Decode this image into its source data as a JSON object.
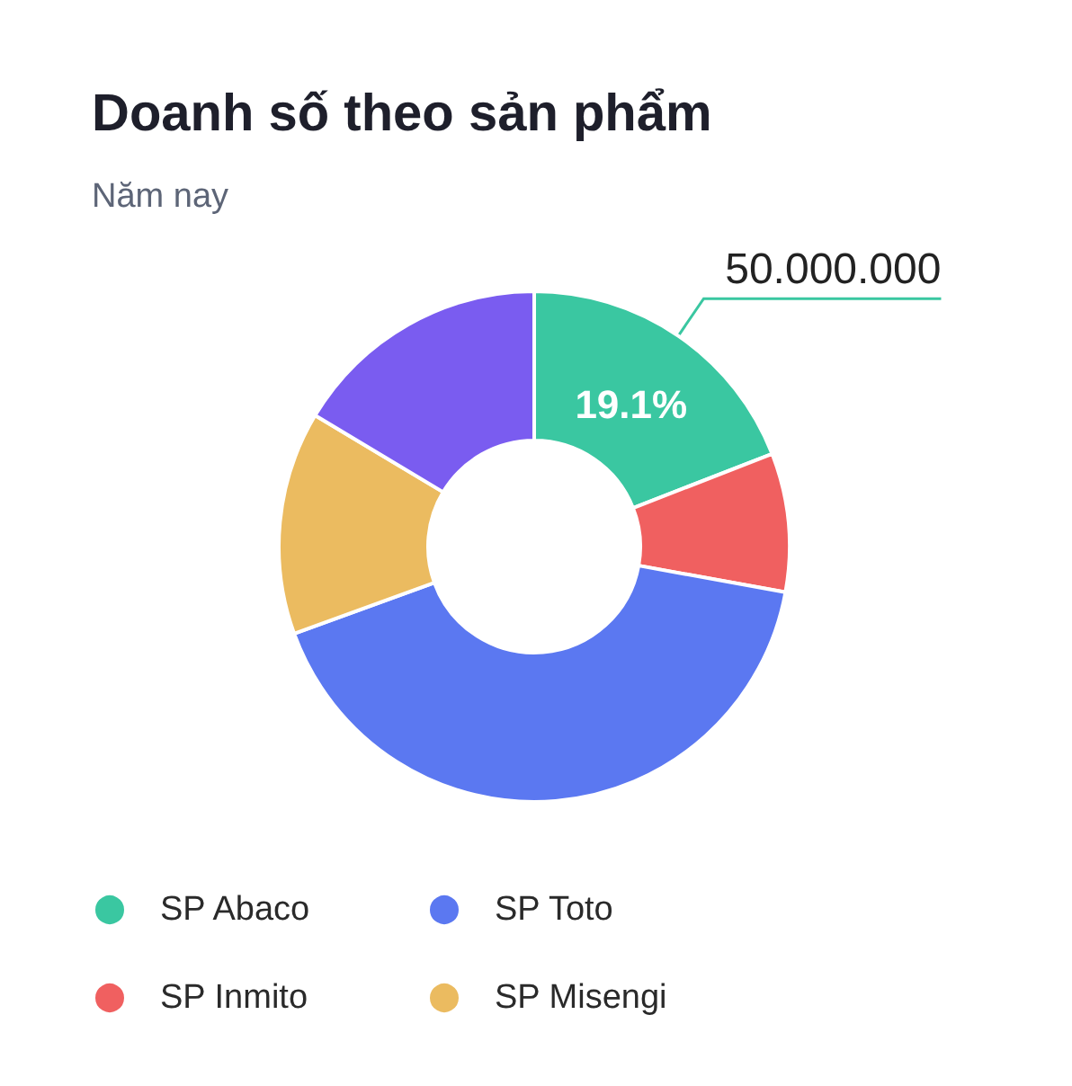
{
  "chart_data": {
    "type": "donut",
    "title": "Doanh số theo sản phẩm",
    "subtitle": "Năm nay",
    "categories": [
      "SP Abaco",
      "SP Inmito",
      "SP Toto",
      "SP Misengi",
      null
    ],
    "values": [
      50000000,
      23000000,
      109000000,
      37000000,
      43000000
    ],
    "colors": [
      "#3ac7a1",
      "#f06060",
      "#5b78f1",
      "#ebbb60",
      "#7a5cf0"
    ],
    "value_labels": [
      "50.000.000",
      null,
      null,
      null,
      null
    ],
    "annotations": [
      {
        "text": "19.1%",
        "x": "SP Abaco"
      }
    ],
    "legend": "bottom"
  }
}
